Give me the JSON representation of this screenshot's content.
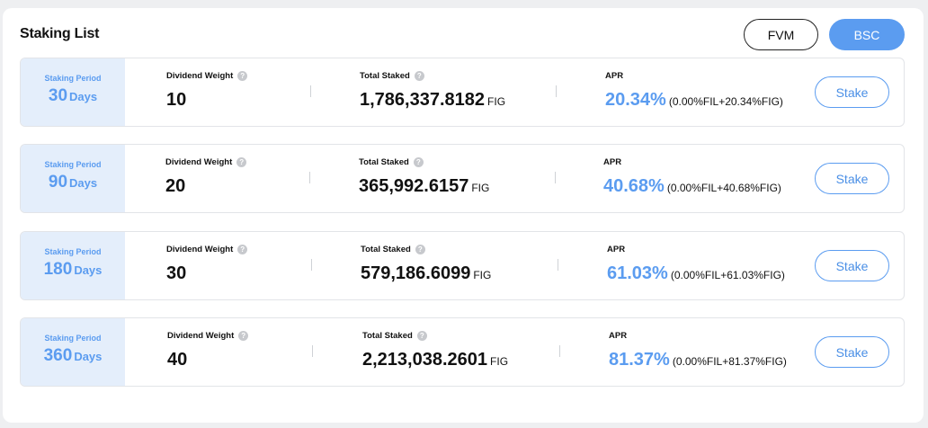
{
  "title": "Staking List",
  "network_buttons": {
    "fvm": "FVM",
    "bsc": "BSC"
  },
  "labels": {
    "staking_period": "Staking Period",
    "dividend_weight": "Dividend Weight",
    "total_staked": "Total Staked",
    "apr": "APR",
    "stake": "Stake",
    "help": "?"
  },
  "rows": [
    {
      "period": "30",
      "period_unit": "Days",
      "weight": "10",
      "total_staked": "1,786,337.8182",
      "staked_unit": "FIG",
      "apr": "20.34%",
      "apr_detail": "(0.00%FIL+20.34%FIG)"
    },
    {
      "period": "90",
      "period_unit": "Days",
      "weight": "20",
      "total_staked": "365,992.6157",
      "staked_unit": "FIG",
      "apr": "40.68%",
      "apr_detail": "(0.00%FIL+40.68%FIG)"
    },
    {
      "period": "180",
      "period_unit": "Days",
      "weight": "30",
      "total_staked": "579,186.6099",
      "staked_unit": "FIG",
      "apr": "61.03%",
      "apr_detail": "(0.00%FIL+61.03%FIG)"
    },
    {
      "period": "360",
      "period_unit": "Days",
      "weight": "40",
      "total_staked": "2,213,038.2601",
      "staked_unit": "FIG",
      "apr": "81.37%",
      "apr_detail": "(0.00%FIL+81.37%FIG)"
    }
  ],
  "colors": {
    "accent": "#5b9cf0",
    "period_bg": "#e4eefb",
    "page_bg": "#eeeff1"
  }
}
